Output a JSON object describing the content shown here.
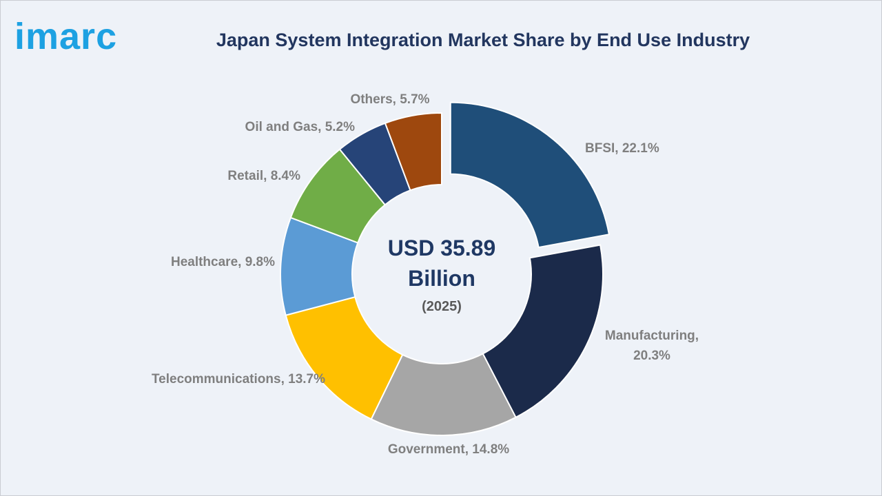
{
  "brand": "imarc",
  "chart_data": {
    "type": "donut",
    "title": "Japan System Integration Market Share by End Use Industry",
    "center_text": "USD 35.89 Billion",
    "center_subtext": "(2025)",
    "categories": [
      "BFSI",
      "Manufacturing",
      "Government",
      "Telecommunications",
      "Healthcare",
      "Retail",
      "Oil and Gas",
      "Others"
    ],
    "values": [
      22.1,
      20.3,
      14.8,
      13.7,
      9.8,
      8.4,
      5.2,
      5.7
    ],
    "value_labels": [
      "BFSI, 22.1%",
      "Manufacturing, 20.3%",
      "Government, 14.8%",
      "Telecommunications, 13.7%",
      "Healthcare, 9.8%",
      "Retail, 8.4%",
      "Oil and Gas, 5.2%",
      "Others, 5.7%"
    ],
    "colors": [
      "#1f4e79",
      "#1b2a4a",
      "#a6a6a6",
      "#ffc000",
      "#5b9bd5",
      "#70ad47",
      "#264478",
      "#9e480e"
    ],
    "exploded": [
      0
    ]
  }
}
